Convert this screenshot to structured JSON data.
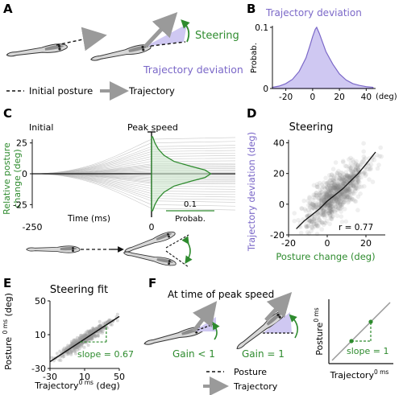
{
  "panels": {
    "A": {
      "letter": "A",
      "steering_label": "Steering",
      "trajectory_deviation_label": "Trajectory deviation",
      "legend_posture": "Initial posture",
      "legend_trajectory": "Trajectory"
    },
    "B": {
      "letter": "B"
    },
    "C": {
      "letter": "C",
      "initial_label": "Initial",
      "peak_label": "Peak speed",
      "ylabel_line1": "Relative posture",
      "ylabel_line2": "change (deg)",
      "xlabel": "Time (ms)",
      "xticks": [
        "-250",
        "0"
      ],
      "yticks": [
        "25",
        "0",
        "-25"
      ],
      "scale_value": "0.1",
      "scale_label": "Probab."
    },
    "D": {
      "letter": "D"
    },
    "E": {
      "letter": "E"
    },
    "F": {
      "letter": "F",
      "title": "At time of peak speed",
      "gain_lt1": "Gain < 1",
      "gain_eq1": "Gain = 1",
      "legend_posture": "Posture",
      "legend_trajectory": "Trajectory",
      "inset_ylabel": "Posture",
      "inset_ysup": "0 ms",
      "inset_xlabel": "Trajectory",
      "inset_xsup": "0 ms",
      "inset_slope": "slope = 1"
    }
  },
  "colors": {
    "purple": "#7b68c8",
    "purple_fill": "#cfc8f2",
    "green": "#2e8b2e",
    "gray_arrow": "#9a9a9a",
    "scatter": "#7a7a7a"
  },
  "chart_data": [
    {
      "id": "B",
      "type": "area",
      "title": "Trajectory deviation",
      "xlabel": "(deg)",
      "ylabel": "Probab.",
      "xlim": [
        -30,
        47
      ],
      "ylim": [
        0,
        0.1
      ],
      "xticks": [
        -20,
        0,
        20,
        40
      ],
      "yticks": [
        0,
        0.1
      ],
      "x": [
        -30,
        -25,
        -20,
        -15,
        -10,
        -5,
        -2,
        0,
        2,
        3,
        5,
        8,
        10,
        15,
        20,
        25,
        30,
        35,
        40,
        45
      ],
      "y": [
        0.002,
        0.004,
        0.008,
        0.015,
        0.028,
        0.05,
        0.07,
        0.085,
        0.097,
        0.1,
        0.09,
        0.072,
        0.06,
        0.04,
        0.024,
        0.014,
        0.008,
        0.005,
        0.003,
        0.002
      ]
    },
    {
      "id": "C",
      "type": "line",
      "xlabel": "Time (ms)",
      "ylabel": "Relative posture change (deg)",
      "xlim": [
        -250,
        0
      ],
      "ylim": [
        -30,
        30
      ],
      "yticks": [
        25,
        0,
        -25
      ],
      "series": [
        {
          "values_at_peak": [
            -28,
            -25,
            -22,
            -20,
            -18,
            -16,
            -14,
            -12,
            -10,
            -8,
            -7,
            -6,
            -5,
            -4,
            -3,
            -2,
            -1,
            0,
            1,
            2,
            3,
            4,
            5,
            6,
            7,
            8,
            10,
            12,
            14,
            16,
            18,
            20,
            22,
            25,
            28
          ]
        }
      ],
      "distribution": {
        "y": [
          -30,
          -25,
          -20,
          -15,
          -10,
          -6,
          -3,
          0,
          3,
          6,
          10,
          15,
          20,
          25,
          30
        ],
        "p": [
          0.002,
          0.006,
          0.012,
          0.022,
          0.04,
          0.07,
          0.095,
          0.105,
          0.095,
          0.07,
          0.04,
          0.022,
          0.012,
          0.006,
          0.002
        ]
      }
    },
    {
      "id": "D",
      "type": "scatter",
      "title": "Steering",
      "xlabel": "Posture change (deg)",
      "ylabel": "Trajectory deviation (deg)",
      "xlim": [
        -20,
        30
      ],
      "ylim": [
        -20,
        45
      ],
      "xticks": [
        -20,
        0,
        20
      ],
      "yticks": [
        -20,
        0,
        20,
        40
      ],
      "annotation": "r = 0.77",
      "trend_x": [
        -16,
        -12,
        -8,
        -4,
        0,
        4,
        8,
        12,
        16,
        20,
        25
      ],
      "trend_y": [
        -16,
        -11,
        -7,
        -3,
        2,
        6,
        10,
        15,
        20,
        26,
        34
      ]
    },
    {
      "id": "E",
      "type": "scatter",
      "title": "Steering fit",
      "xlabel": "Trajectory",
      "xlabel_sup": "0 ms",
      "xlabel_unit": "(deg)",
      "ylabel": "Posture",
      "ylabel_sup": "0 ms",
      "ylabel_unit": "(deg)",
      "xlim": [
        -30,
        50
      ],
      "ylim": [
        -30,
        50
      ],
      "xticks": [
        -30,
        10,
        50
      ],
      "yticks": [
        50,
        10,
        -30
      ],
      "annotation": "slope = 0.67",
      "fit_x": [
        -30,
        50
      ],
      "fit_y": [
        -22,
        31.6
      ]
    }
  ]
}
